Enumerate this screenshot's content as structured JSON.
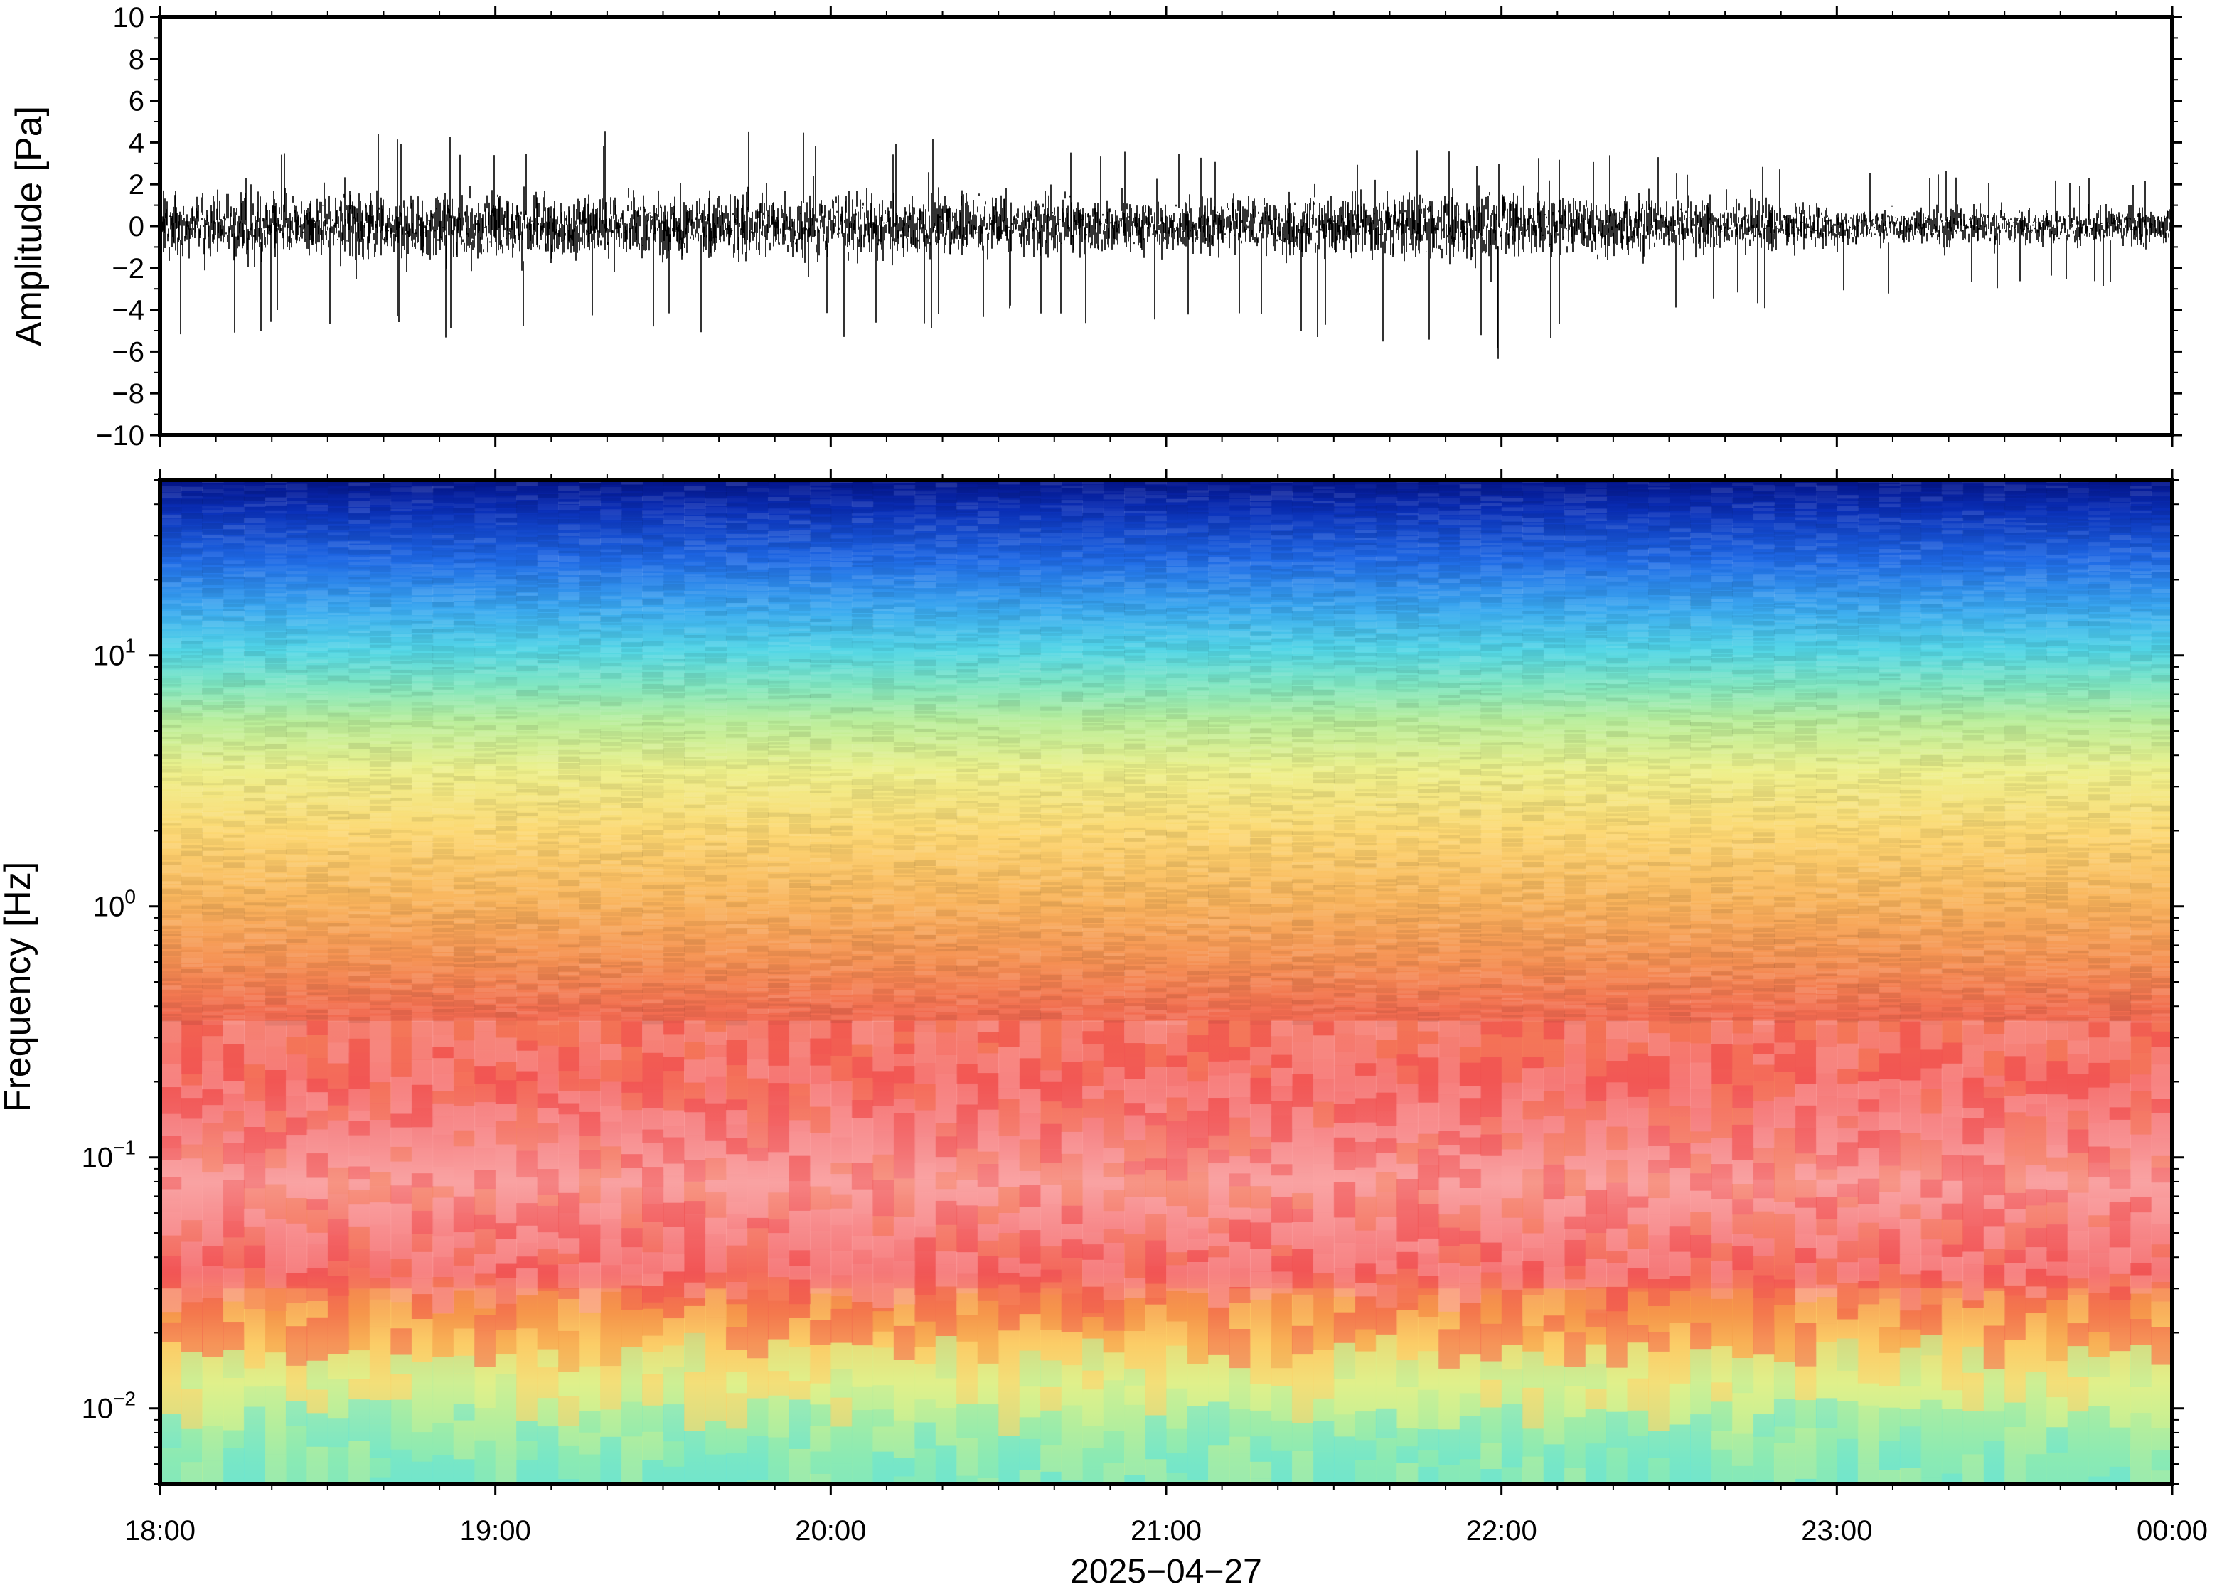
{
  "chart_data": [
    {
      "type": "line",
      "ylabel": "Amplitude [Pa]",
      "xlabel": "2025−04−27",
      "ylim": [
        -10,
        10
      ],
      "y_ticks": [
        {
          "value": 10,
          "label": "10"
        },
        {
          "value": 8,
          "label": "8"
        },
        {
          "value": 6,
          "label": "6"
        },
        {
          "value": 4,
          "label": "4"
        },
        {
          "value": 2,
          "label": "2"
        },
        {
          "value": 0,
          "label": "0"
        },
        {
          "value": -2,
          "label": "−2"
        },
        {
          "value": -4,
          "label": "−4"
        },
        {
          "value": -6,
          "label": "−6"
        },
        {
          "value": -8,
          "label": "−8"
        },
        {
          "value": -10,
          "label": "−10"
        }
      ],
      "x_range_hours": [
        18,
        24
      ],
      "series": [
        {
          "color": "#000000",
          "description_values_hourly": {
            "x": [
              "18:00",
              "19:00",
              "20:00",
              "21:00",
              "22:00",
              "23:00",
              "00:00"
            ],
            "envelope_max": [
              4.5,
              4.5,
              4.7,
              3.8,
              3.8,
              2.8,
              2.4
            ],
            "envelope_min": [
              -5.2,
              -5.5,
              -5.5,
              -4.5,
              -6.4,
              -3.3,
              -3.0
            ]
          }
        }
      ]
    },
    {
      "type": "heatmap",
      "ylabel": "Frequency [Hz]",
      "xlabel": "2025−04−27",
      "y_scale": "log",
      "ylim": [
        0.005,
        50
      ],
      "y_ticks": [
        {
          "value": 10,
          "base": "10",
          "exp": "1"
        },
        {
          "value": 1,
          "base": "10",
          "exp": "0"
        },
        {
          "value": 0.1,
          "base": "10",
          "exp": "−1"
        },
        {
          "value": 0.01,
          "base": "10",
          "exp": "−2"
        }
      ],
      "x_ticks": [
        "18:00",
        "19:00",
        "20:00",
        "21:00",
        "22:00",
        "23:00",
        "00:00"
      ],
      "colormap": [
        "#0a1a9e",
        "#1e5fe0",
        "#38b6ee",
        "#5ee0d8",
        "#8eebb0",
        "#d8f08a",
        "#fbd26a",
        "#f6a04a",
        "#f26a4e",
        "#f45a5a",
        "#fa9a9a"
      ],
      "color_by_frequency_band": [
        {
          "band_hz": [
            20,
            50
          ],
          "color": "dark blue"
        },
        {
          "band_hz": [
            8,
            20
          ],
          "color": "light blue / cyan"
        },
        {
          "band_hz": [
            3,
            8
          ],
          "color": "green to yellow"
        },
        {
          "band_hz": [
            0.5,
            3
          ],
          "color": "orange"
        },
        {
          "band_hz": [
            0.15,
            0.5
          ],
          "color": "red"
        },
        {
          "band_hz": [
            0.06,
            0.15
          ],
          "color": "pink"
        },
        {
          "band_hz": [
            0.025,
            0.06
          ],
          "color": "red"
        },
        {
          "band_hz": [
            0.015,
            0.025
          ],
          "color": "orange / yellow"
        },
        {
          "band_hz": [
            0.005,
            0.015
          ],
          "color": "light green / cyan"
        }
      ]
    }
  ]
}
